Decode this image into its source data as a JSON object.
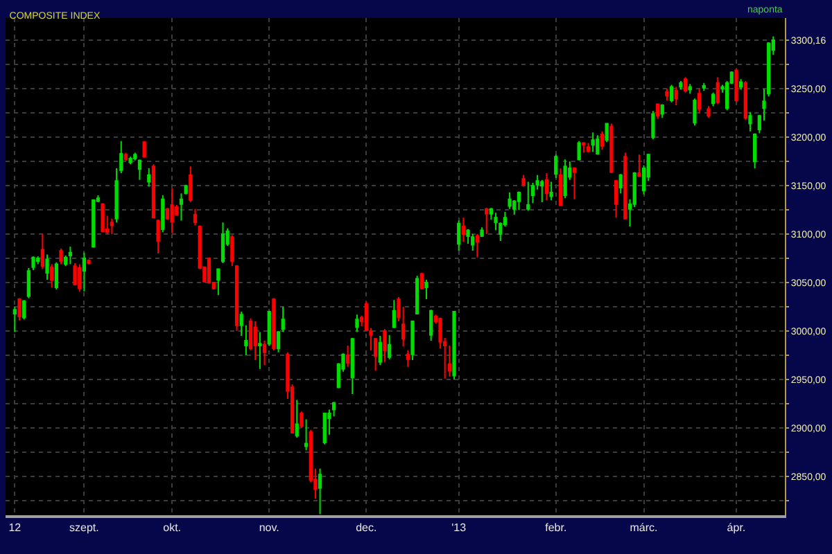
{
  "chart_data": {
    "type": "candlestick",
    "title": "COMPOSITE INDEX",
    "annotations": [
      "naponta"
    ],
    "categories": [
      "12",
      null,
      null,
      null,
      null,
      null,
      null,
      null,
      null,
      null,
      null,
      null,
      null,
      null,
      null,
      "szept.",
      null,
      null,
      null,
      null,
      null,
      null,
      null,
      null,
      null,
      null,
      null,
      null,
      null,
      null,
      null,
      null,
      null,
      null,
      "okt.",
      null,
      null,
      null,
      null,
      null,
      null,
      null,
      null,
      null,
      null,
      null,
      null,
      null,
      null,
      null,
      null,
      null,
      null,
      null,
      null,
      "nov.",
      null,
      null,
      null,
      null,
      null,
      null,
      null,
      null,
      null,
      null,
      null,
      null,
      null,
      null,
      null,
      null,
      null,
      null,
      null,
      null,
      "dec.",
      null,
      null,
      null,
      null,
      null,
      null,
      null,
      null,
      null,
      null,
      null,
      null,
      null,
      null,
      null,
      null,
      null,
      null,
      null,
      "'13",
      null,
      null,
      null,
      null,
      null,
      null,
      null,
      null,
      null,
      null,
      null,
      null,
      null,
      null,
      null,
      null,
      null,
      null,
      null,
      null,
      "febr.",
      null,
      null,
      null,
      null,
      null,
      null,
      null,
      null,
      null,
      null,
      null,
      null,
      null,
      null,
      null,
      null,
      null,
      null,
      "márc.",
      null,
      null,
      null,
      null,
      null,
      null,
      null,
      null,
      null,
      null,
      null,
      null,
      null,
      null,
      null,
      null,
      null,
      null,
      null,
      "ápr.",
      null,
      null,
      null,
      null,
      null,
      null,
      null,
      null
    ],
    "ohlc": [
      [
        3018,
        3025,
        2999,
        3022
      ],
      [
        3033,
        3034,
        3011,
        3015
      ],
      [
        3014,
        3032,
        3012,
        3031
      ],
      [
        3036,
        3065,
        3034,
        3062
      ],
      [
        3066,
        3077,
        3063,
        3076
      ],
      [
        3072,
        3077,
        3069,
        3075
      ],
      [
        3084,
        3100,
        3064,
        3067
      ],
      [
        3060,
        3079,
        3053,
        3074
      ],
      [
        3066,
        3069,
        3045,
        3053
      ],
      [
        3045,
        3071,
        3043,
        3069
      ],
      [
        3083,
        3085,
        3069,
        3072
      ],
      [
        3069,
        3078,
        3067,
        3076
      ],
      [
        3078,
        3087,
        3069,
        3081
      ],
      [
        3067,
        3070,
        3047,
        3048
      ],
      [
        3065,
        3069,
        3041,
        3044
      ],
      [
        3062,
        3081,
        3041,
        3075
      ],
      [
        3073,
        3074,
        3069,
        3070
      ],
      [
        3087,
        3136,
        3086,
        3135
      ],
      [
        3134,
        3140,
        3133,
        3137
      ],
      [
        3131,
        3132,
        3103,
        3103
      ],
      [
        3105,
        3119,
        3100,
        3102
      ],
      [
        3112,
        3116,
        3100,
        3109
      ],
      [
        3116,
        3168,
        3112,
        3155
      ],
      [
        3166,
        3196,
        3163,
        3183
      ],
      [
        3182,
        3184,
        3176,
        3177
      ],
      [
        3174,
        3180,
        3172,
        3178
      ],
      [
        3178,
        3184,
        3176,
        3182
      ],
      [
        3167,
        3177,
        3156,
        3176
      ],
      [
        3195,
        3196,
        3179,
        3180
      ],
      [
        3154,
        3168,
        3149,
        3161
      ],
      [
        3170,
        3172,
        3117,
        3117
      ],
      [
        3114,
        3115,
        3080,
        3093
      ],
      [
        3105,
        3140,
        3102,
        3136
      ],
      [
        3126,
        3127,
        3115,
        3116
      ],
      [
        3130,
        3147,
        3101,
        3113
      ],
      [
        3128,
        3130,
        3119,
        3120
      ],
      [
        3131,
        3142,
        3114,
        3136
      ],
      [
        3142,
        3151,
        3141,
        3150
      ],
      [
        3161,
        3170,
        3133,
        3135
      ],
      [
        3120,
        3126,
        3109,
        3112
      ],
      [
        3108,
        3109,
        3064,
        3065
      ],
      [
        3066,
        3066,
        3050,
        3051
      ],
      [
        3075,
        3076,
        3049,
        3050
      ],
      [
        3050,
        3050,
        3043,
        3044
      ],
      [
        3053,
        3064,
        3037,
        3064
      ],
      [
        3072,
        3112,
        3070,
        3100
      ],
      [
        3090,
        3106,
        3088,
        3103
      ],
      [
        3097,
        3099,
        3067,
        3072
      ],
      [
        3067,
        3068,
        3000,
        3006
      ],
      [
        3006,
        3020,
        2995,
        3017
      ],
      [
        2985,
        3006,
        2975,
        2990
      ],
      [
        3010,
        3013,
        2980,
        2982
      ],
      [
        3004,
        3010,
        2970,
        2985
      ],
      [
        2985,
        2999,
        2961,
        2987
      ],
      [
        2986,
        2990,
        2965,
        2978
      ],
      [
        2987,
        3021,
        2985,
        3020
      ],
      [
        3033,
        3034,
        2980,
        2982
      ],
      [
        2982,
        3000,
        2978,
        2999
      ],
      [
        3002,
        3025,
        2999,
        3012
      ],
      [
        2976,
        2978,
        2930,
        2938
      ],
      [
        2942,
        2945,
        2895,
        2895
      ],
      [
        2892,
        2929,
        2890,
        2904
      ],
      [
        2915,
        2917,
        2900,
        2902
      ],
      [
        2881,
        2909,
        2877,
        2884
      ],
      [
        2896,
        2898,
        2844,
        2846
      ],
      [
        2847,
        2858,
        2827,
        2837
      ],
      [
        2838,
        2858,
        2811,
        2852
      ],
      [
        2885,
        2916,
        2883,
        2915
      ],
      [
        2910,
        2919,
        2893,
        2915
      ],
      [
        2919,
        2927,
        2912,
        2926
      ],
      [
        2942,
        2967,
        2941,
        2966
      ],
      [
        2961,
        2977,
        2958,
        2976
      ],
      [
        2975,
        2985,
        2963,
        2967
      ],
      [
        2952,
        2993,
        2935,
        2992
      ],
      [
        3004,
        3017,
        2999,
        3012
      ],
      [
        3014,
        3016,
        3005,
        3010
      ],
      [
        3028,
        3030,
        3000,
        3001
      ],
      [
        3000,
        3003,
        2980,
        2996
      ],
      [
        2992,
        2993,
        2959,
        2974
      ],
      [
        2968,
        2995,
        2965,
        2988
      ],
      [
        3000,
        3002,
        2968,
        2980
      ],
      [
        2973,
        2996,
        2971,
        2986
      ],
      [
        3004,
        3032,
        3003,
        3021
      ],
      [
        3033,
        3035,
        3010,
        3014
      ],
      [
        3007,
        3025,
        2984,
        2992
      ],
      [
        2976,
        2980,
        2963,
        2971
      ],
      [
        2976,
        3011,
        2970,
        3010
      ],
      [
        3018,
        3057,
        3018,
        3054
      ],
      [
        3059,
        3060,
        3043,
        3044
      ],
      [
        3045,
        3053,
        3033,
        3050
      ],
      [
        2996,
        3022,
        2990,
        3021
      ],
      [
        3015,
        3017,
        3008,
        3010
      ],
      [
        3013,
        3014,
        2982,
        2989
      ],
      [
        2989,
        2993,
        2951,
        2985
      ],
      [
        2966,
        2985,
        2953,
        2959
      ],
      [
        2954,
        3020,
        2950,
        3020
      ],
      [
        3090,
        3114,
        3083,
        3111
      ],
      [
        3108,
        3117,
        3092,
        3100
      ],
      [
        3098,
        3105,
        3090,
        3104
      ],
      [
        3089,
        3100,
        3083,
        3097
      ],
      [
        3098,
        3100,
        3076,
        3092
      ],
      [
        3098,
        3107,
        3097,
        3104
      ],
      [
        3126,
        3127,
        3100,
        3121
      ],
      [
        3121,
        3127,
        3115,
        3126
      ],
      [
        3112,
        3122,
        3104,
        3117
      ],
      [
        3100,
        3112,
        3093,
        3111
      ],
      [
        3110,
        3123,
        3108,
        3117
      ],
      [
        3129,
        3143,
        3126,
        3136
      ],
      [
        3126,
        3135,
        3120,
        3134
      ],
      [
        3134,
        3144,
        3125,
        3143
      ],
      [
        3157,
        3161,
        3149,
        3151
      ],
      [
        3126,
        3154,
        3124,
        3130
      ],
      [
        3140,
        3153,
        3132,
        3150
      ],
      [
        3151,
        3161,
        3146,
        3155
      ],
      [
        3150,
        3156,
        3133,
        3154
      ],
      [
        3156,
        3163,
        3135,
        3142
      ],
      [
        3139,
        3154,
        3135,
        3143
      ],
      [
        3162,
        3182,
        3158,
        3180
      ],
      [
        3161,
        3168,
        3129,
        3130
      ],
      [
        3140,
        3177,
        3137,
        3170
      ],
      [
        3159,
        3175,
        3156,
        3168
      ],
      [
        3168,
        3169,
        3136,
        3164
      ],
      [
        3177,
        3196,
        3176,
        3194
      ],
      [
        3194,
        3195,
        3184,
        3192
      ],
      [
        3190,
        3194,
        3184,
        3186
      ],
      [
        3192,
        3205,
        3185,
        3197
      ],
      [
        3183,
        3202,
        3182,
        3198
      ],
      [
        3203,
        3206,
        3187,
        3191
      ],
      [
        3197,
        3214,
        3195,
        3214
      ],
      [
        3211,
        3214,
        3163,
        3164
      ],
      [
        3155,
        3156,
        3117,
        3131
      ],
      [
        3148,
        3162,
        3142,
        3161
      ],
      [
        3180,
        3184,
        3116,
        3116
      ],
      [
        3126,
        3136,
        3108,
        3131
      ],
      [
        3131,
        3164,
        3128,
        3163
      ],
      [
        3163,
        3182,
        3159,
        3160
      ],
      [
        3145,
        3171,
        3141,
        3168
      ],
      [
        3159,
        3183,
        3155,
        3182
      ],
      [
        3200,
        3227,
        3198,
        3224
      ],
      [
        3234,
        3235,
        3219,
        3222
      ],
      [
        3224,
        3234,
        3220,
        3233
      ],
      [
        3247,
        3250,
        3238,
        3243
      ],
      [
        3238,
        3254,
        3236,
        3252
      ],
      [
        3248,
        3252,
        3233,
        3240
      ],
      [
        3252,
        3258,
        3249,
        3256
      ],
      [
        3260,
        3262,
        3246,
        3248
      ],
      [
        3249,
        3255,
        3245,
        3252
      ],
      [
        3215,
        3240,
        3212,
        3238
      ],
      [
        3245,
        3250,
        3225,
        3229
      ],
      [
        3251,
        3256,
        3248,
        3253
      ],
      [
        3229,
        3232,
        3220,
        3222
      ],
      [
        3235,
        3246,
        3232,
        3244
      ],
      [
        3256,
        3262,
        3234,
        3236
      ],
      [
        3250,
        3254,
        3246,
        3252
      ],
      [
        3230,
        3258,
        3228,
        3256
      ],
      [
        3256,
        3268,
        3255,
        3267
      ],
      [
        3269,
        3270,
        3236,
        3238
      ],
      [
        3252,
        3260,
        3249,
        3257
      ],
      [
        3256,
        3258,
        3218,
        3220
      ],
      [
        3214,
        3226,
        3206,
        3222
      ],
      [
        3175,
        3204,
        3168,
        3203
      ],
      [
        3208,
        3223,
        3204,
        3222
      ],
      [
        3230,
        3250,
        3217,
        3237
      ],
      [
        3245,
        3298,
        3242,
        3297
      ],
      [
        3290,
        3304,
        3285,
        3300.16
      ]
    ],
    "colors": [
      "#00dd00",
      "#ff0000",
      "#00dd00",
      "#00dd00",
      "#00dd00",
      "#00dd00",
      "#ff0000",
      "#00dd00",
      "#ff0000",
      "#00dd00",
      "#ff0000",
      "#00dd00",
      "#00dd00",
      "#ff0000",
      "#ff0000",
      "#00dd00",
      "#ff0000",
      "#00dd00",
      "#00dd00",
      "#ff0000",
      "#ff0000",
      "#ff0000",
      "#00dd00",
      "#00dd00",
      "#ff0000",
      "#00dd00",
      "#00dd00",
      "#00dd00",
      "#ff0000",
      "#00dd00",
      "#ff0000",
      "#ff0000",
      "#00dd00",
      "#ff0000",
      "#ff0000",
      "#ff0000",
      "#00dd00",
      "#00dd00",
      "#ff0000",
      "#ff0000",
      "#ff0000",
      "#ff0000",
      "#ff0000",
      "#ff0000",
      "#00dd00",
      "#00dd00",
      "#00dd00",
      "#ff0000",
      "#ff0000",
      "#00dd00",
      "#00dd00",
      "#ff0000",
      "#ff0000",
      "#00dd00",
      "#ff0000",
      "#00dd00",
      "#ff0000",
      "#00dd00",
      "#00dd00",
      "#ff0000",
      "#ff0000",
      "#00dd00",
      "#ff0000",
      "#00dd00",
      "#ff0000",
      "#ff0000",
      "#00dd00",
      "#00dd00",
      "#00dd00",
      "#00dd00",
      "#00dd00",
      "#00dd00",
      "#ff0000",
      "#00dd00",
      "#00dd00",
      "#ff0000",
      "#ff0000",
      "#ff0000",
      "#ff0000",
      "#00dd00",
      "#ff0000",
      "#00dd00",
      "#00dd00",
      "#ff0000",
      "#ff0000",
      "#ff0000",
      "#00dd00",
      "#00dd00",
      "#ff0000",
      "#00dd00",
      "#00dd00",
      "#ff0000",
      "#ff0000",
      "#ff0000",
      "#ff0000",
      "#00dd00",
      "#00dd00",
      "#ff0000",
      "#00dd00",
      "#00dd00",
      "#ff0000",
      "#00dd00",
      "#ff0000",
      "#00dd00",
      "#00dd00",
      "#00dd00",
      "#00dd00",
      "#00dd00",
      "#00dd00",
      "#00dd00",
      "#ff0000",
      "#00dd00",
      "#00dd00",
      "#00dd00",
      "#00dd00",
      "#ff0000",
      "#00dd00",
      "#00dd00",
      "#ff0000",
      "#00dd00",
      "#00dd00",
      "#ff0000",
      "#00dd00",
      "#ff0000",
      "#ff0000",
      "#00dd00",
      "#00dd00",
      "#ff0000",
      "#00dd00",
      "#ff0000",
      "#ff0000",
      "#00dd00",
      "#ff0000",
      "#00dd00",
      "#00dd00",
      "#ff0000",
      "#00dd00",
      "#00dd00",
      "#00dd00",
      "#ff0000",
      "#00dd00",
      "#ff0000",
      "#00dd00",
      "#ff0000",
      "#00dd00",
      "#ff0000",
      "#00dd00",
      "#00dd00",
      "#ff0000",
      "#00dd00",
      "#ff0000",
      "#00dd00",
      "#ff0000",
      "#00dd00",
      "#00dd00",
      "#00dd00",
      "#ff0000",
      "#00dd00",
      "#ff0000",
      "#00dd00",
      "#00dd00",
      "#00dd00",
      "#00dd00",
      "#00dd00",
      "#00dd00"
    ],
    "ylim": [
      2810,
      3323
    ],
    "yticks": [
      {
        "value": 2825,
        "label": null
      },
      {
        "value": 2850,
        "label": "2850,00"
      },
      {
        "value": 2875,
        "label": null
      },
      {
        "value": 2900,
        "label": "2900,00"
      },
      {
        "value": 2925,
        "label": null
      },
      {
        "value": 2950,
        "label": "2950,00"
      },
      {
        "value": 2975,
        "label": null
      },
      {
        "value": 3000,
        "label": "3000,00"
      },
      {
        "value": 3025,
        "label": null
      },
      {
        "value": 3050,
        "label": "3050,00"
      },
      {
        "value": 3075,
        "label": null
      },
      {
        "value": 3100,
        "label": "3100,00"
      },
      {
        "value": 3125,
        "label": null
      },
      {
        "value": 3150,
        "label": "3150,00"
      },
      {
        "value": 3175,
        "label": null
      },
      {
        "value": 3200,
        "label": "3200,00"
      },
      {
        "value": 3225,
        "label": null
      },
      {
        "value": 3250,
        "label": "3250,00"
      },
      {
        "value": 3275,
        "label": null
      },
      {
        "value": 3300.16,
        "label": "3300,16"
      }
    ],
    "grid": true
  }
}
